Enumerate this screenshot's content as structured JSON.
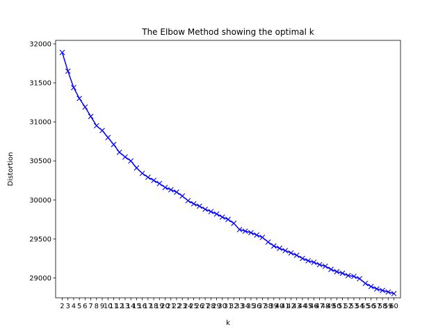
{
  "chart_data": {
    "type": "line",
    "title": "The Elbow Method showing the optimal k",
    "xlabel": "k",
    "ylabel": "Distortion",
    "x": [
      2,
      3,
      4,
      5,
      6,
      7,
      8,
      9,
      10,
      11,
      12,
      13,
      14,
      15,
      16,
      17,
      18,
      19,
      20,
      21,
      22,
      23,
      24,
      25,
      26,
      27,
      28,
      29,
      30,
      31,
      32,
      33,
      34,
      35,
      36,
      37,
      38,
      39,
      40,
      41,
      42,
      43,
      44,
      45,
      46,
      47,
      48,
      49,
      50,
      51,
      52,
      53,
      54,
      55,
      56,
      57,
      58,
      59,
      60
    ],
    "y": [
      31890,
      31650,
      31440,
      31300,
      31190,
      31070,
      30950,
      30890,
      30800,
      30710,
      30610,
      30550,
      30500,
      30410,
      30340,
      30290,
      30250,
      30210,
      30160,
      30130,
      30100,
      30050,
      29990,
      29950,
      29920,
      29880,
      29850,
      29820,
      29780,
      29750,
      29700,
      29620,
      29600,
      29580,
      29550,
      29520,
      29460,
      29410,
      29380,
      29350,
      29320,
      29290,
      29250,
      29220,
      29200,
      29170,
      29150,
      29110,
      29080,
      29060,
      29030,
      29020,
      28990,
      28930,
      28890,
      28860,
      28840,
      28820,
      28800
    ],
    "yticks": [
      29000,
      29500,
      30000,
      30500,
      31000,
      31500,
      32000
    ],
    "xlim": [
      0.85,
      61.15
    ],
    "ylim": [
      28745,
      32045
    ],
    "grid": false,
    "legend": "none",
    "series_color": "#0000ff",
    "marker": "x-icon"
  }
}
